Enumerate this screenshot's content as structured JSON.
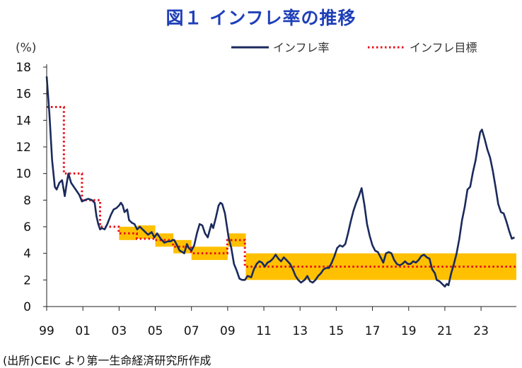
{
  "title": "図１ インフレ率の推移",
  "unit_label": "(%)",
  "source": "(出所)CEIC より第一生命経済研究所作成",
  "colors": {
    "line": "#1a2a5c",
    "target": "#e8101a",
    "band": "#ffc000",
    "axis": "#222222"
  },
  "chart_data": {
    "type": "line",
    "title": "図１ インフレ率の推移",
    "xlabel": "",
    "ylabel": "(%)",
    "xlim": [
      1999.0,
      2024.95
    ],
    "ylim": [
      0,
      18
    ],
    "y_ticks": [
      0,
      2,
      4,
      6,
      8,
      10,
      12,
      14,
      16,
      18
    ],
    "x_ticks": [
      {
        "value": 1999,
        "label": "99"
      },
      {
        "value": 2001,
        "label": "01"
      },
      {
        "value": 2003,
        "label": "03"
      },
      {
        "value": 2005,
        "label": "05"
      },
      {
        "value": 2007,
        "label": "07"
      },
      {
        "value": 2009,
        "label": "09"
      },
      {
        "value": 2011,
        "label": "11"
      },
      {
        "value": 2013,
        "label": "13"
      },
      {
        "value": 2015,
        "label": "15"
      },
      {
        "value": 2017,
        "label": "17"
      },
      {
        "value": 2019,
        "label": "19"
      },
      {
        "value": 2021,
        "label": "21"
      },
      {
        "value": 2023,
        "label": "23"
      }
    ],
    "legend": [
      {
        "name": "インフレ率",
        "style": "solid"
      },
      {
        "name": "インフレ目標",
        "style": "dotted"
      }
    ],
    "series": [
      {
        "name": "インフレ率",
        "points": [
          [
            1999.0,
            17.3
          ],
          [
            1999.15,
            14.5
          ],
          [
            1999.3,
            11.0
          ],
          [
            1999.45,
            9.0
          ],
          [
            1999.55,
            8.8
          ],
          [
            1999.7,
            9.3
          ],
          [
            1999.85,
            9.5
          ],
          [
            2000.0,
            8.3
          ],
          [
            2000.1,
            9.2
          ],
          [
            2000.2,
            10.0
          ],
          [
            2000.35,
            9.3
          ],
          [
            2000.5,
            9.0
          ],
          [
            2000.65,
            8.7
          ],
          [
            2000.8,
            8.4
          ],
          [
            2000.95,
            7.9
          ],
          [
            2001.1,
            8.0
          ],
          [
            2001.3,
            8.1
          ],
          [
            2001.5,
            8.0
          ],
          [
            2001.65,
            7.8
          ],
          [
            2001.75,
            6.8
          ],
          [
            2001.85,
            6.2
          ],
          [
            2001.95,
            5.8
          ],
          [
            2002.05,
            5.9
          ],
          [
            2002.2,
            5.8
          ],
          [
            2002.35,
            6.2
          ],
          [
            2002.55,
            6.9
          ],
          [
            2002.7,
            7.3
          ],
          [
            2002.85,
            7.4
          ],
          [
            2003.0,
            7.6
          ],
          [
            2003.1,
            7.8
          ],
          [
            2003.2,
            7.6
          ],
          [
            2003.3,
            7.1
          ],
          [
            2003.45,
            7.3
          ],
          [
            2003.55,
            6.5
          ],
          [
            2003.7,
            6.3
          ],
          [
            2003.85,
            6.2
          ],
          [
            2004.0,
            5.8
          ],
          [
            2004.15,
            6.0
          ],
          [
            2004.3,
            5.8
          ],
          [
            2004.45,
            5.6
          ],
          [
            2004.6,
            5.4
          ],
          [
            2004.8,
            5.6
          ],
          [
            2004.95,
            5.2
          ],
          [
            2005.1,
            5.5
          ],
          [
            2005.3,
            5.1
          ],
          [
            2005.5,
            4.8
          ],
          [
            2005.7,
            4.9
          ],
          [
            2005.85,
            4.9
          ],
          [
            2005.95,
            5.0
          ],
          [
            2006.05,
            5.0
          ],
          [
            2006.2,
            4.6
          ],
          [
            2006.35,
            4.2
          ],
          [
            2006.5,
            4.1
          ],
          [
            2006.6,
            4.0
          ],
          [
            2006.75,
            4.7
          ],
          [
            2006.85,
            4.4
          ],
          [
            2007.0,
            4.2
          ],
          [
            2007.15,
            4.6
          ],
          [
            2007.3,
            5.5
          ],
          [
            2007.45,
            6.2
          ],
          [
            2007.6,
            6.1
          ],
          [
            2007.75,
            5.5
          ],
          [
            2007.9,
            5.2
          ],
          [
            2008.0,
            5.7
          ],
          [
            2008.1,
            6.2
          ],
          [
            2008.2,
            5.9
          ],
          [
            2008.35,
            6.7
          ],
          [
            2008.5,
            7.6
          ],
          [
            2008.6,
            7.8
          ],
          [
            2008.7,
            7.7
          ],
          [
            2008.85,
            7.0
          ],
          [
            2008.95,
            6.1
          ],
          [
            2009.05,
            5.2
          ],
          [
            2009.2,
            4.4
          ],
          [
            2009.35,
            3.2
          ],
          [
            2009.5,
            2.7
          ],
          [
            2009.65,
            2.1
          ],
          [
            2009.8,
            2.0
          ],
          [
            2009.95,
            2.0
          ],
          [
            2010.1,
            2.3
          ],
          [
            2010.3,
            2.2
          ],
          [
            2010.45,
            2.8
          ],
          [
            2010.6,
            3.2
          ],
          [
            2010.75,
            3.4
          ],
          [
            2010.9,
            3.3
          ],
          [
            2011.05,
            3.0
          ],
          [
            2011.2,
            3.3
          ],
          [
            2011.35,
            3.4
          ],
          [
            2011.5,
            3.6
          ],
          [
            2011.65,
            3.9
          ],
          [
            2011.8,
            3.6
          ],
          [
            2011.95,
            3.4
          ],
          [
            2012.1,
            3.7
          ],
          [
            2012.25,
            3.5
          ],
          [
            2012.45,
            3.2
          ],
          [
            2012.6,
            2.8
          ],
          [
            2012.75,
            2.3
          ],
          [
            2012.9,
            2.0
          ],
          [
            2013.05,
            1.8
          ],
          [
            2013.25,
            2.0
          ],
          [
            2013.4,
            2.3
          ],
          [
            2013.55,
            1.9
          ],
          [
            2013.7,
            1.8
          ],
          [
            2013.85,
            2.0
          ],
          [
            2014.0,
            2.3
          ],
          [
            2014.15,
            2.5
          ],
          [
            2014.3,
            2.8
          ],
          [
            2014.45,
            2.9
          ],
          [
            2014.6,
            2.9
          ],
          [
            2014.75,
            3.3
          ],
          [
            2014.9,
            3.8
          ],
          [
            2015.05,
            4.4
          ],
          [
            2015.2,
            4.6
          ],
          [
            2015.35,
            4.5
          ],
          [
            2015.5,
            4.7
          ],
          [
            2015.65,
            5.5
          ],
          [
            2015.8,
            6.4
          ],
          [
            2015.95,
            7.2
          ],
          [
            2016.1,
            7.8
          ],
          [
            2016.25,
            8.3
          ],
          [
            2016.4,
            8.9
          ],
          [
            2016.55,
            7.7
          ],
          [
            2016.7,
            6.2
          ],
          [
            2016.85,
            5.3
          ],
          [
            2017.0,
            4.6
          ],
          [
            2017.15,
            4.2
          ],
          [
            2017.3,
            4.1
          ],
          [
            2017.45,
            3.7
          ],
          [
            2017.6,
            3.3
          ],
          [
            2017.75,
            4.0
          ],
          [
            2017.9,
            4.1
          ],
          [
            2018.05,
            4.0
          ],
          [
            2018.2,
            3.5
          ],
          [
            2018.35,
            3.2
          ],
          [
            2018.5,
            3.1
          ],
          [
            2018.65,
            3.2
          ],
          [
            2018.8,
            3.4
          ],
          [
            2018.95,
            3.2
          ],
          [
            2019.1,
            3.2
          ],
          [
            2019.25,
            3.4
          ],
          [
            2019.4,
            3.3
          ],
          [
            2019.55,
            3.5
          ],
          [
            2019.7,
            3.8
          ],
          [
            2019.85,
            3.9
          ],
          [
            2020.0,
            3.7
          ],
          [
            2020.15,
            3.6
          ],
          [
            2020.3,
            2.8
          ],
          [
            2020.45,
            2.5
          ],
          [
            2020.55,
            2.0
          ],
          [
            2020.7,
            1.9
          ],
          [
            2020.85,
            1.7
          ],
          [
            2021.0,
            1.5
          ],
          [
            2021.1,
            1.7
          ],
          [
            2021.2,
            1.6
          ],
          [
            2021.35,
            2.5
          ],
          [
            2021.5,
            3.2
          ],
          [
            2021.65,
            4.0
          ],
          [
            2021.8,
            5.1
          ],
          [
            2021.95,
            6.5
          ],
          [
            2022.1,
            7.5
          ],
          [
            2022.25,
            8.8
          ],
          [
            2022.4,
            9.0
          ],
          [
            2022.55,
            10.1
          ],
          [
            2022.7,
            11.0
          ],
          [
            2022.85,
            12.3
          ],
          [
            2022.95,
            13.1
          ],
          [
            2023.05,
            13.3
          ],
          [
            2023.2,
            12.6
          ],
          [
            2023.35,
            11.8
          ],
          [
            2023.5,
            11.2
          ],
          [
            2023.65,
            10.2
          ],
          [
            2023.8,
            9.0
          ],
          [
            2023.95,
            7.7
          ],
          [
            2024.1,
            7.1
          ],
          [
            2024.25,
            7.0
          ],
          [
            2024.4,
            6.4
          ],
          [
            2024.55,
            5.7
          ],
          [
            2024.7,
            5.1
          ],
          [
            2024.85,
            5.2
          ]
        ]
      },
      {
        "name": "インフレ目標",
        "points": [
          [
            1999.0,
            15.0
          ],
          [
            1999.95,
            15.0
          ],
          [
            1999.95,
            10.0
          ],
          [
            2000.95,
            10.0
          ],
          [
            2000.95,
            8.0
          ],
          [
            2001.95,
            8.0
          ],
          [
            2001.95,
            6.0
          ],
          [
            2002.98,
            6.0
          ],
          [
            2002.98,
            5.5
          ],
          [
            2003.98,
            5.5
          ],
          [
            2003.98,
            5.1
          ],
          [
            2004.98,
            5.1
          ],
          [
            2004.98,
            5.0
          ],
          [
            2005.98,
            5.0
          ],
          [
            2005.98,
            4.5
          ],
          [
            2006.98,
            4.5
          ],
          [
            2006.98,
            4.0
          ],
          [
            2008.98,
            4.0
          ],
          [
            2008.98,
            5.0
          ],
          [
            2009.95,
            5.0
          ],
          [
            2009.95,
            3.0
          ],
          [
            2024.95,
            3.0
          ]
        ]
      }
    ],
    "target_bands": [
      {
        "x0": 2003.0,
        "x1": 2004.0,
        "y0": 5.0,
        "y1": 6.0
      },
      {
        "x0": 2004.0,
        "x1": 2005.0,
        "y0": 5.1,
        "y1": 6.1
      },
      {
        "x0": 2005.0,
        "x1": 2006.0,
        "y0": 4.5,
        "y1": 5.5
      },
      {
        "x0": 2006.0,
        "x1": 2007.0,
        "y0": 4.0,
        "y1": 5.0
      },
      {
        "x0": 2007.0,
        "x1": 2009.0,
        "y0": 3.5,
        "y1": 4.5
      },
      {
        "x0": 2009.0,
        "x1": 2010.0,
        "y0": 4.5,
        "y1": 5.5
      },
      {
        "x0": 2010.0,
        "x1": 2024.95,
        "y0": 2.0,
        "y1": 4.0
      }
    ]
  }
}
